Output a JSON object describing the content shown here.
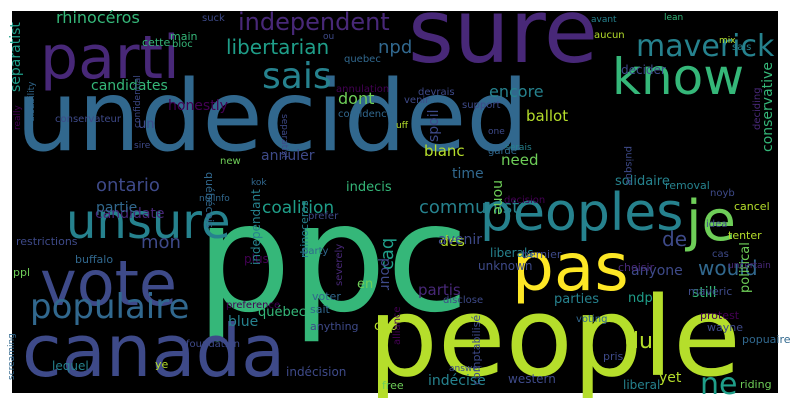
{
  "colors": {
    "background": "#000000",
    "page": "#ffffff",
    "palette": [
      "#440154",
      "#482878",
      "#3e4a89",
      "#31688e",
      "#26828e",
      "#1f9e89",
      "#35b779",
      "#6ece58",
      "#b5de2b",
      "#fde725"
    ]
  },
  "words": [
    {
      "text": "undecided",
      "color": "#31688e"
    },
    {
      "text": "ppc",
      "color": "#35b779"
    },
    {
      "text": "people",
      "color": "#b5de2b"
    },
    {
      "text": "canada",
      "color": "#3e4a89"
    },
    {
      "text": "sure",
      "color": "#482878"
    },
    {
      "text": "vote",
      "color": "#3e4a89"
    },
    {
      "text": "pas",
      "color": "#fde725"
    },
    {
      "text": "parti",
      "color": "#482878"
    },
    {
      "text": "know",
      "color": "#35b779"
    },
    {
      "text": "unsure",
      "color": "#26828e"
    },
    {
      "text": "peoples",
      "color": "#26828e"
    },
    {
      "text": "je",
      "color": "#6ece58"
    },
    {
      "text": "populaire",
      "color": "#31688e"
    },
    {
      "text": "maverick",
      "color": "#26828e"
    },
    {
      "text": "sais",
      "color": "#26828e"
    },
    {
      "text": "independent",
      "color": "#482878"
    },
    {
      "text": "libertarian",
      "color": "#1f9e89"
    },
    {
      "text": "mon",
      "color": "#3e4a89"
    },
    {
      "text": "du",
      "color": "#b5de2b"
    },
    {
      "text": "ne",
      "color": "#1f9e89"
    },
    {
      "text": "would",
      "color": "#31688e"
    },
    {
      "text": "de",
      "color": "#3e4a89"
    },
    {
      "text": "ontario",
      "color": "#3e4a89"
    },
    {
      "text": "communist",
      "color": "#26828e"
    },
    {
      "text": "coalition",
      "color": "#1f9e89"
    },
    {
      "text": "rhinocéros",
      "color": "#35b779"
    },
    {
      "text": "separatist",
      "color": "#1f9e89"
    },
    {
      "text": "npd",
      "color": "#31688e"
    },
    {
      "text": "dont",
      "color": "#6ece58"
    },
    {
      "text": "encore",
      "color": "#26828e"
    },
    {
      "text": "spoil",
      "color": "#3e4a89"
    },
    {
      "text": "ballot",
      "color": "#b5de2b"
    },
    {
      "text": "candidates",
      "color": "#35b779"
    },
    {
      "text": "honestly",
      "color": "#440154"
    },
    {
      "text": "conservative",
      "color": "#35b779"
    },
    {
      "text": "none",
      "color": "#6ece58"
    },
    {
      "text": "blanc",
      "color": "#b5de2b"
    },
    {
      "text": "time",
      "color": "#31688e"
    },
    {
      "text": "need",
      "color": "#6ece58"
    },
    {
      "text": "annuler",
      "color": "#3e4a89"
    },
    {
      "text": "indecis",
      "color": "#35b779"
    },
    {
      "text": "candidate",
      "color": "#482878"
    },
    {
      "text": "partie",
      "color": "#31688e"
    },
    {
      "text": "des",
      "color": "#b5de2b"
    },
    {
      "text": "solidaire",
      "color": "#26828e"
    },
    {
      "text": "liberals",
      "color": "#26828e"
    },
    {
      "text": "unknown",
      "color": "#3e4a89"
    },
    {
      "text": "caq",
      "color": "#1f9e89"
    },
    {
      "text": "en",
      "color": "#6ece58"
    },
    {
      "text": "québec",
      "color": "#35b779"
    },
    {
      "text": "partis",
      "color": "#482878"
    },
    {
      "text": "parties",
      "color": "#26828e"
    },
    {
      "text": "ndp",
      "color": "#1f9e89"
    },
    {
      "text": "still",
      "color": "#35b779"
    },
    {
      "text": "blue",
      "color": "#26828e"
    },
    {
      "text": "cpp",
      "color": "#b5de2b"
    },
    {
      "text": "indécise",
      "color": "#26828e"
    },
    {
      "text": "western",
      "color": "#3e4a89"
    },
    {
      "text": "yet",
      "color": "#b5de2b"
    },
    {
      "text": "liberal",
      "color": "#26828e"
    },
    {
      "text": "anyone",
      "color": "#3e4a89"
    },
    {
      "text": "political",
      "color": "#6ece58"
    },
    {
      "text": "avenir",
      "color": "#3e4a89"
    },
    {
      "text": "pour",
      "color": "#3e4a89"
    },
    {
      "text": "plus",
      "color": "#440154"
    },
    {
      "text": "un",
      "color": "#3e4a89"
    },
    {
      "text": "free",
      "color": "#6ece58"
    },
    {
      "text": "anything",
      "color": "#3e4a89"
    },
    {
      "text": "voter",
      "color": "#31688e"
    },
    {
      "text": "sait",
      "color": "#31688e"
    },
    {
      "text": "preference",
      "color": "#440154"
    },
    {
      "text": "foundation",
      "color": "#3e4a89"
    },
    {
      "text": "indécision",
      "color": "#3e4a89"
    },
    {
      "text": "lequel",
      "color": "#26828e"
    },
    {
      "text": "ppl",
      "color": "#6ece58"
    },
    {
      "text": "restrictions",
      "color": "#3e4a89"
    },
    {
      "text": "buffalo",
      "color": "#31688e"
    },
    {
      "text": "rhinoceros",
      "color": "#26828e"
    },
    {
      "text": "independant",
      "color": "#26828e"
    },
    {
      "text": "bernier",
      "color": "#3e4a89"
    },
    {
      "text": "choisir",
      "color": "#482878"
    },
    {
      "text": "protest",
      "color": "#440154"
    },
    {
      "text": "wayne",
      "color": "#3e4a89"
    },
    {
      "text": "popuaire",
      "color": "#31688e"
    },
    {
      "text": "riding",
      "color": "#6ece58"
    },
    {
      "text": "maveric",
      "color": "#3e4a89"
    },
    {
      "text": "voting",
      "color": "#31688e"
    },
    {
      "text": "tenter",
      "color": "#b5de2b"
    },
    {
      "text": "idea",
      "color": "#3e4a89"
    },
    {
      "text": "cancel",
      "color": "#b5de2b"
    },
    {
      "text": "removal",
      "color": "#26828e"
    },
    {
      "text": "noyb",
      "color": "#3e4a89"
    },
    {
      "text": "prefer",
      "color": "#3e4a89"
    },
    {
      "text": "decision",
      "color": "#440154"
    },
    {
      "text": "kok",
      "color": "#31688e"
    },
    {
      "text": "nullnfo",
      "color": "#31688e"
    },
    {
      "text": "québécois",
      "color": "#31688e"
    },
    {
      "text": "new",
      "color": "#6ece58"
    },
    {
      "text": "sire",
      "color": "#3e4a89"
    },
    {
      "text": "ye",
      "color": "#b5de2b"
    },
    {
      "text": "answer",
      "color": "#3e4a89"
    },
    {
      "text": "alliance",
      "color": "#440154"
    },
    {
      "text": "disclose",
      "color": "#3e4a89"
    },
    {
      "text": "severely",
      "color": "#482878"
    },
    {
      "text": "party",
      "color": "#31688e"
    },
    {
      "text": "pris",
      "color": "#3e4a89"
    },
    {
      "text": "support",
      "color": "#3e4a89"
    },
    {
      "text": "confidence",
      "color": "#31688e"
    },
    {
      "text": "quebec",
      "color": "#31688e"
    },
    {
      "text": "annulation",
      "color": "#440154"
    },
    {
      "text": "devrais",
      "color": "#3e4a89"
    },
    {
      "text": "venir",
      "color": "#3e4a89"
    },
    {
      "text": "one",
      "color": "#3e4a89"
    },
    {
      "text": "serais",
      "color": "#26828e"
    },
    {
      "text": "garde",
      "color": "#31688e"
    },
    {
      "text": "main",
      "color": "#35b779"
    },
    {
      "text": "cette",
      "color": "#35b779"
    },
    {
      "text": "bloc",
      "color": "#35b779"
    },
    {
      "text": "suck",
      "color": "#3e4a89"
    },
    {
      "text": "ou",
      "color": "#3e4a89"
    },
    {
      "text": "lean",
      "color": "#35b779"
    },
    {
      "text": "avant",
      "color": "#26828e"
    },
    {
      "text": "aucun",
      "color": "#b5de2b"
    },
    {
      "text": "decider",
      "color": "#3e4a89"
    },
    {
      "text": "sais",
      "color": "#26828e"
    },
    {
      "text": "conservateur",
      "color": "#3e4a89"
    },
    {
      "text": "disability",
      "color": "#31688e"
    },
    {
      "text": "really",
      "color": "#440154"
    },
    {
      "text": "confidential",
      "color": "#3e4a89"
    },
    {
      "text": "separatist",
      "color": "#3e4a89"
    },
    {
      "text": "puisque",
      "color": "#3e4a89"
    },
    {
      "text": "deciding",
      "color": "#482878"
    },
    {
      "text": "comptabilisé",
      "color": "#3e4a89"
    },
    {
      "text": "screaming",
      "color": "#31688e"
    },
    {
      "text": "uncertain",
      "color": "#482878"
    },
    {
      "text": "uff",
      "color": "#b5de2b"
    },
    {
      "text": "cas",
      "color": "#3e4a89"
    },
    {
      "text": "mix",
      "color": "#b5de2b"
    },
    {
      "text": "pas",
      "color": "#26828e"
    }
  ]
}
